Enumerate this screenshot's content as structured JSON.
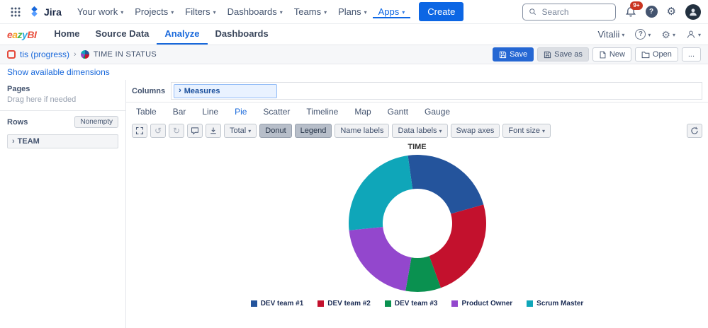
{
  "jira_nav": {
    "logo_text": "Jira",
    "menu": [
      {
        "label": "Your work"
      },
      {
        "label": "Projects"
      },
      {
        "label": "Filters"
      },
      {
        "label": "Dashboards"
      },
      {
        "label": "Teams"
      },
      {
        "label": "Plans"
      },
      {
        "label": "Apps",
        "active": true
      }
    ],
    "create_label": "Create",
    "search_placeholder": "Search",
    "notification_badge": "9+"
  },
  "eazybi_nav": {
    "logo_letters": [
      {
        "ch": "e",
        "color": "#e94f3d"
      },
      {
        "ch": "a",
        "color": "#f5a623"
      },
      {
        "ch": "z",
        "color": "#45b649"
      },
      {
        "ch": "y",
        "color": "#29a8e0"
      },
      {
        "ch": "B",
        "color": "#e94f3d"
      },
      {
        "ch": "I",
        "color": "#e94f3d"
      }
    ],
    "tabs": [
      {
        "label": "Home"
      },
      {
        "label": "Source Data"
      },
      {
        "label": "Analyze",
        "active": true
      },
      {
        "label": "Dashboards"
      }
    ],
    "user": "Vitalii"
  },
  "report_bar": {
    "account": "tis (progress)",
    "title": "TIME IN STATUS",
    "buttons": {
      "save": "Save",
      "save_as": "Save as",
      "new": "New",
      "open": "Open",
      "more": "..."
    }
  },
  "dimensions_link": "Show available dimensions",
  "layout_panel": {
    "pages_label": "Pages",
    "pages_hint": "Drag here if needed",
    "rows_label": "Rows",
    "nonempty_label": "Nonempty",
    "rows_items": [
      "TEAM"
    ],
    "columns_label": "Columns",
    "columns_items": [
      "Measures"
    ]
  },
  "chart_tabs": [
    "Table",
    "Bar",
    "Line",
    "Pie",
    "Scatter",
    "Timeline",
    "Map",
    "Gantt",
    "Gauge"
  ],
  "active_chart_tab": "Pie",
  "chart_toolbar": {
    "total_label": "Total",
    "toggles": [
      {
        "label": "Donut",
        "active": true
      },
      {
        "label": "Legend",
        "active": true
      },
      {
        "label": "Name labels",
        "active": false
      },
      {
        "label": "Data labels",
        "active": false,
        "caret": true
      },
      {
        "label": "Swap axes",
        "active": false
      },
      {
        "label": "Font size",
        "active": false,
        "caret": true
      }
    ]
  },
  "chart_data": {
    "type": "pie",
    "donut": true,
    "title": "TIME",
    "start_angle": -8,
    "legend_position": "bottom",
    "segments": [
      {
        "name": "DEV team #1",
        "value": 22.8,
        "color": "#24549c"
      },
      {
        "name": "DEV team #2",
        "value": 23.9,
        "color": "#c3112d"
      },
      {
        "name": "DEV team #3",
        "value": 8.3,
        "color": "#0a9150"
      },
      {
        "name": "Product Owner",
        "value": 20.6,
        "color": "#9347cd"
      },
      {
        "name": "Scrum Master",
        "value": 24.4,
        "color": "#0fa6b9"
      }
    ]
  }
}
